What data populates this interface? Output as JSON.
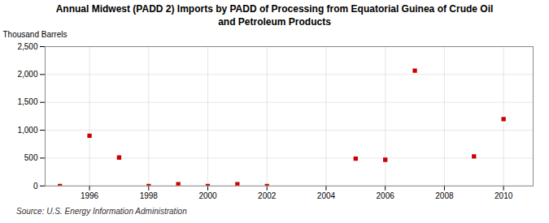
{
  "chart_data": {
    "type": "scatter",
    "title": "Annual Midwest (PADD 2) Imports by PADD of Processing from Equatorial Guinea of Crude Oil\nand Petroleum Products",
    "ylabel": "Thousand Barrels",
    "caption": "Source: U.S. Energy Information Administration",
    "x": [
      1995,
      1996,
      1997,
      1998,
      1999,
      2000,
      2001,
      2002,
      2005,
      2006,
      2007,
      2009,
      2010
    ],
    "values": [
      0,
      900,
      510,
      0,
      30,
      0,
      30,
      0,
      490,
      470,
      2070,
      530,
      1200
    ],
    "color": "#cc0000",
    "marker": "square",
    "xlim": [
      1994.5,
      2011
    ],
    "xticks": [
      1996,
      1998,
      2000,
      2002,
      2004,
      2006,
      2008,
      2010
    ],
    "ylim": [
      0,
      2500
    ],
    "yticks": [
      0,
      500,
      {
        "value": 1000,
        "label": "1,000"
      },
      {
        "value": 1500,
        "label": "1,500"
      },
      {
        "value": 2000,
        "label": "2,000"
      },
      {
        "value": 2500,
        "label": "2,500"
      }
    ],
    "grid": true
  }
}
